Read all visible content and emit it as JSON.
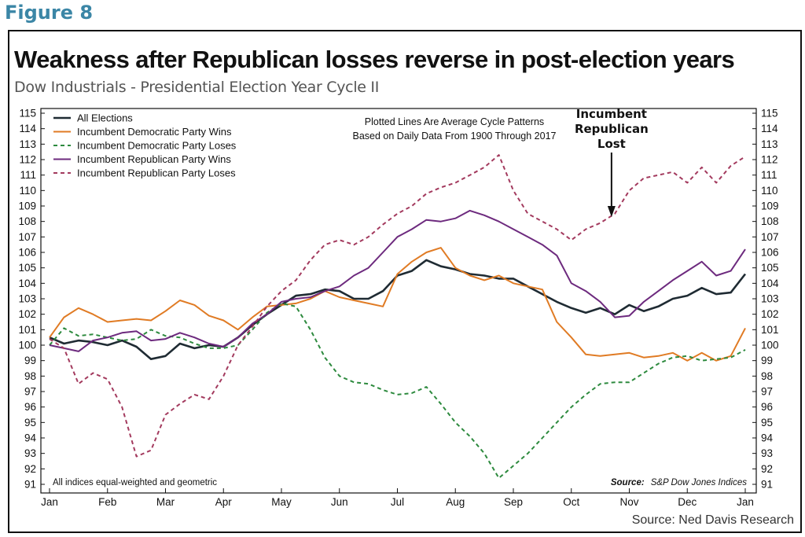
{
  "figure_label": "Figure 8",
  "source_text": "Source: Ned Davis Research",
  "colors": {
    "all": "#1f2b33",
    "dem_wins": "#e07b24",
    "dem_loses": "#2d8a3e",
    "rep_wins": "#6d2a7e",
    "rep_loses": "#a33a5e"
  },
  "chart_data": {
    "type": "line",
    "title": "Weakness after Republican losses reverse in post-election years",
    "subtitle": "Dow Industrials - Presidential Election Year Cycle II",
    "x_tick_labels": [
      "Jan",
      "Feb",
      "Mar",
      "Apr",
      "May",
      "Jun",
      "Jul",
      "Aug",
      "Sep",
      "Oct",
      "Nov",
      "Dec",
      "Jan"
    ],
    "ylim": [
      91,
      115
    ],
    "y_ticks": [
      "91",
      "92",
      "93",
      "94",
      "95",
      "96",
      "97",
      "98",
      "99",
      "100",
      "101",
      "102",
      "103",
      "104",
      "105",
      "106",
      "107",
      "108",
      "109",
      "110",
      "111",
      "112",
      "113",
      "114",
      "115"
    ],
    "legend_position": "top-left",
    "note": [
      "Plotted Lines Are Average Cycle Patterns",
      "Based on Daily Data From 1900 Through 2017"
    ],
    "annotation": {
      "lines": [
        "Incumbent",
        "Republican",
        "Lost"
      ],
      "at_x": 10.1
    },
    "footnote_left": "All indices equal-weighted and geometric",
    "footnote_source_label": "Source:",
    "footnote_source_value": "S&P Dow Jones Indices",
    "series": [
      {
        "name": "All Elections",
        "key": "all",
        "dash": "solid",
        "x": [
          0,
          0.25,
          0.5,
          0.75,
          1,
          1.25,
          1.5,
          1.75,
          2,
          2.25,
          2.5,
          2.75,
          3,
          3.25,
          3.5,
          3.75,
          4,
          4.25,
          4.5,
          4.75,
          5,
          5.25,
          5.5,
          5.75,
          6,
          6.25,
          6.5,
          6.75,
          7,
          7.25,
          7.5,
          7.75,
          8,
          8.25,
          8.5,
          8.75,
          9,
          9.25,
          9.5,
          9.75,
          10,
          10.25,
          10.5,
          10.75,
          11,
          11.25,
          11.5,
          11.75,
          12
        ],
        "values": [
          100.5,
          100.1,
          100.3,
          100.2,
          100.0,
          100.3,
          99.9,
          99.1,
          99.3,
          100.1,
          99.8,
          100.0,
          99.9,
          100.5,
          101.3,
          102.0,
          102.6,
          103.2,
          103.3,
          103.6,
          103.5,
          103.0,
          103.0,
          103.5,
          104.5,
          104.8,
          105.5,
          105.1,
          104.9,
          104.6,
          104.5,
          104.3,
          104.3,
          103.8,
          103.3,
          102.8,
          102.4,
          102.1,
          102.4,
          102.0,
          102.6,
          102.2,
          102.5,
          103.0,
          103.2,
          103.7,
          103.3,
          103.4,
          104.6
        ]
      },
      {
        "name": "Incumbent Democratic Party Wins",
        "key": "dem_wins",
        "dash": "solid",
        "x": [
          0,
          0.25,
          0.5,
          0.75,
          1,
          1.25,
          1.5,
          1.75,
          2,
          2.25,
          2.5,
          2.75,
          3,
          3.25,
          3.5,
          3.75,
          4,
          4.25,
          4.5,
          4.75,
          5,
          5.25,
          5.5,
          5.75,
          6,
          6.25,
          6.5,
          6.75,
          7,
          7.25,
          7.5,
          7.75,
          8,
          8.25,
          8.5,
          8.75,
          9,
          9.25,
          9.5,
          9.75,
          10,
          10.25,
          10.5,
          10.75,
          11,
          11.25,
          11.5,
          11.75,
          12
        ],
        "values": [
          100.5,
          101.8,
          102.4,
          102.0,
          101.5,
          101.6,
          101.7,
          101.6,
          102.2,
          102.9,
          102.6,
          101.9,
          101.6,
          101.0,
          101.8,
          102.5,
          102.6,
          102.7,
          103.0,
          103.5,
          103.1,
          102.9,
          102.7,
          102.5,
          104.6,
          105.4,
          106.0,
          106.3,
          105.0,
          104.5,
          104.2,
          104.5,
          104.0,
          103.8,
          103.6,
          101.5,
          100.5,
          99.4,
          99.3,
          99.4,
          99.5,
          99.2,
          99.3,
          99.5,
          99.0,
          99.5,
          99.0,
          99.3,
          101.1
        ]
      },
      {
        "name": "Incumbent Democratic Party Loses",
        "key": "dem_loses",
        "dash": "dashed",
        "x": [
          0,
          0.25,
          0.5,
          0.75,
          1,
          1.25,
          1.5,
          1.75,
          2,
          2.25,
          2.5,
          2.75,
          3,
          3.25,
          3.5,
          3.75,
          4,
          4.25,
          4.5,
          4.75,
          5,
          5.25,
          5.5,
          5.75,
          6,
          6.25,
          6.5,
          6.75,
          7,
          7.25,
          7.5,
          7.75,
          8,
          8.25,
          8.5,
          8.75,
          9,
          9.25,
          9.5,
          9.75,
          10,
          10.25,
          10.5,
          10.75,
          11,
          11.25,
          11.5,
          11.75,
          12
        ],
        "values": [
          100.0,
          101.1,
          100.6,
          100.7,
          100.5,
          100.3,
          100.4,
          101.0,
          100.6,
          100.5,
          100.1,
          99.8,
          99.8,
          100.0,
          101.0,
          102.1,
          102.7,
          102.5,
          101.0,
          99.2,
          98.0,
          97.6,
          97.5,
          97.1,
          96.8,
          96.9,
          97.3,
          96.2,
          95.0,
          94.1,
          93.0,
          91.4,
          92.2,
          93.0,
          94.0,
          95.0,
          96.0,
          96.8,
          97.5,
          97.6,
          97.6,
          98.2,
          98.8,
          99.2,
          99.3,
          99.0,
          99.1,
          99.2,
          99.7
        ]
      },
      {
        "name": "Incumbent Republican Party Wins",
        "key": "rep_wins",
        "dash": "solid",
        "x": [
          0,
          0.25,
          0.5,
          0.75,
          1,
          1.25,
          1.5,
          1.75,
          2,
          2.25,
          2.5,
          2.75,
          3,
          3.25,
          3.5,
          3.75,
          4,
          4.25,
          4.5,
          4.75,
          5,
          5.25,
          5.5,
          5.75,
          6,
          6.25,
          6.5,
          6.75,
          7,
          7.25,
          7.5,
          7.75,
          8,
          8.25,
          8.5,
          8.75,
          9,
          9.25,
          9.5,
          9.75,
          10,
          10.25,
          10.5,
          10.75,
          11,
          11.25,
          11.5,
          11.75,
          12
        ],
        "values": [
          100.0,
          99.8,
          99.6,
          100.3,
          100.5,
          100.8,
          100.9,
          100.3,
          100.4,
          100.8,
          100.5,
          100.1,
          99.9,
          100.5,
          101.4,
          102.0,
          102.8,
          103.0,
          103.1,
          103.5,
          103.8,
          104.5,
          105.0,
          106.0,
          107.0,
          107.5,
          108.1,
          108.0,
          108.2,
          108.7,
          108.4,
          108.0,
          107.5,
          107.0,
          106.5,
          105.8,
          104.0,
          103.5,
          102.8,
          101.8,
          101.9,
          102.8,
          103.5,
          104.2,
          104.8,
          105.4,
          104.5,
          104.8,
          106.2
        ]
      },
      {
        "name": "Incumbent Republican Party Loses",
        "key": "rep_loses",
        "dash": "dashed",
        "x": [
          0,
          0.25,
          0.5,
          0.75,
          1,
          1.25,
          1.5,
          1.75,
          2,
          2.25,
          2.5,
          2.75,
          3,
          3.25,
          3.5,
          3.75,
          4,
          4.25,
          4.5,
          4.75,
          5,
          5.25,
          5.5,
          5.75,
          6,
          6.25,
          6.5,
          6.75,
          7,
          7.25,
          7.5,
          7.75,
          8,
          8.25,
          8.5,
          8.75,
          9,
          9.25,
          9.5,
          9.75,
          10,
          10.25,
          10.5,
          10.75,
          11,
          11.25,
          11.5,
          11.75,
          12
        ],
        "values": [
          100.4,
          99.8,
          97.5,
          98.2,
          97.8,
          96.0,
          92.8,
          93.2,
          95.5,
          96.2,
          96.8,
          96.5,
          98.0,
          100.0,
          101.2,
          102.5,
          103.5,
          104.2,
          105.5,
          106.5,
          106.8,
          106.5,
          107.0,
          107.8,
          108.5,
          109.0,
          109.8,
          110.2,
          110.5,
          111.0,
          111.5,
          112.3,
          110.0,
          108.5,
          108.0,
          107.5,
          106.8,
          107.5,
          107.9,
          108.5,
          110.0,
          110.8,
          111.0,
          111.2,
          110.5,
          111.5,
          110.5,
          111.6,
          112.2
        ]
      }
    ]
  }
}
